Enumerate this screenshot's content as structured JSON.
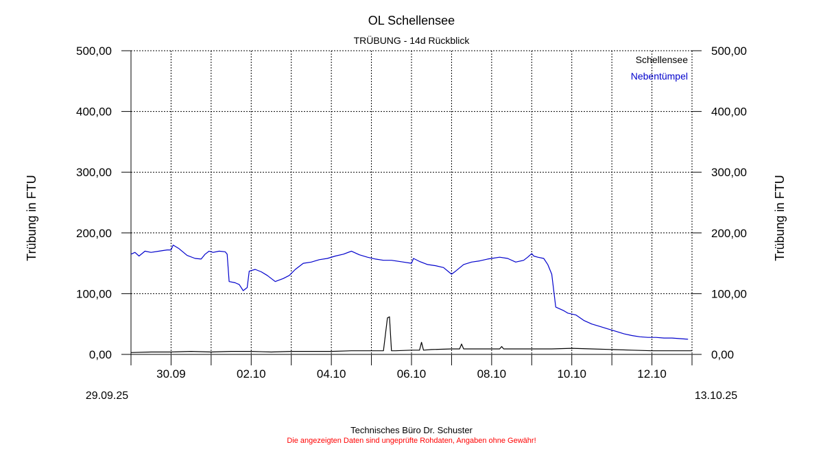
{
  "chart_data": {
    "type": "line",
    "title": "OL Schellensee",
    "subtitle": "TRÜBUNG - 14d Rückblick",
    "ylabel_left": "Trübung in FTU",
    "ylabel_right": "Trübung in FTU",
    "ylim": [
      0,
      500
    ],
    "yticks": [
      0,
      100,
      200,
      300,
      400,
      500
    ],
    "ytick_labels": [
      "0,00",
      "100,00",
      "200,00",
      "300,00",
      "400,00",
      "500,00"
    ],
    "x_start_label": "29.09.25",
    "x_end_label": "13.10.25",
    "xtick_days": [
      1,
      3,
      5,
      7,
      9,
      11,
      13
    ],
    "xtick_labels": [
      "30.09",
      "02.10",
      "04.10",
      "06.10",
      "08.10",
      "10.10",
      "12.10"
    ],
    "grid": true,
    "legend_position": "top-right",
    "series": [
      {
        "name": "Schellensee",
        "color": "#000000",
        "x_days": [
          0.0,
          0.5,
          1.0,
          1.5,
          2.0,
          2.5,
          3.0,
          3.5,
          4.0,
          4.5,
          5.0,
          5.5,
          6.0,
          6.3,
          6.4,
          6.45,
          6.5,
          6.6,
          7.0,
          7.2,
          7.25,
          7.3,
          7.5,
          8.0,
          8.2,
          8.25,
          8.3,
          8.5,
          9.0,
          9.2,
          9.25,
          9.3,
          9.5,
          10.0,
          10.5,
          11.0,
          11.5,
          12.0,
          12.5,
          13.0,
          13.5,
          14.0
        ],
        "values": [
          3,
          4,
          4,
          5,
          4,
          5,
          5,
          4,
          5,
          5,
          5,
          6,
          6,
          6,
          60,
          62,
          6,
          6,
          7,
          7,
          20,
          7,
          8,
          9,
          9,
          17,
          9,
          9,
          9,
          9,
          13,
          9,
          9,
          9,
          9,
          10,
          9,
          8,
          7,
          6,
          6,
          6
        ]
      },
      {
        "name": "Nebentümpel",
        "color": "#0000cc",
        "x_days": [
          0.0,
          0.1,
          0.2,
          0.35,
          0.5,
          0.7,
          0.9,
          1.0,
          1.05,
          1.2,
          1.4,
          1.6,
          1.75,
          1.85,
          1.95,
          2.05,
          2.2,
          2.35,
          2.4,
          2.45,
          2.6,
          2.7,
          2.8,
          2.9,
          2.95,
          3.1,
          3.25,
          3.4,
          3.6,
          3.8,
          3.95,
          4.1,
          4.3,
          4.5,
          4.7,
          4.9,
          5.1,
          5.3,
          5.5,
          5.7,
          5.9,
          6.1,
          6.3,
          6.5,
          6.8,
          7.0,
          7.05,
          7.2,
          7.4,
          7.6,
          7.8,
          8.0,
          8.1,
          8.3,
          8.5,
          8.7,
          8.9,
          9.0,
          9.2,
          9.4,
          9.6,
          9.8,
          9.9,
          10.0,
          10.05,
          10.15,
          10.3,
          10.4,
          10.5,
          10.6,
          10.8,
          10.9,
          11.1,
          11.3,
          11.5,
          11.7,
          11.9,
          12.1,
          12.3,
          12.5,
          12.7,
          12.9,
          13.1,
          13.3,
          13.5,
          13.7,
          13.9
        ],
        "values": [
          165,
          168,
          162,
          170,
          168,
          170,
          172,
          172,
          180,
          174,
          163,
          158,
          157,
          165,
          170,
          168,
          170,
          169,
          165,
          120,
          118,
          115,
          105,
          110,
          137,
          140,
          136,
          130,
          120,
          125,
          130,
          140,
          150,
          152,
          156,
          158,
          162,
          165,
          170,
          164,
          160,
          157,
          155,
          155,
          152,
          150,
          158,
          153,
          148,
          146,
          143,
          132,
          137,
          148,
          152,
          154,
          157,
          158,
          160,
          158,
          152,
          155,
          160,
          166,
          162,
          160,
          158,
          148,
          132,
          78,
          72,
          68,
          65,
          56,
          50,
          46,
          42,
          38,
          34,
          31,
          29,
          28,
          28,
          27,
          27,
          26,
          25
        ]
      }
    ]
  },
  "footer": {
    "company": "Technisches Büro Dr. Schuster",
    "disclaimer": "Die angezeigten Daten sind ungeprüfte Rohdaten, Angaben ohne Gewähr!"
  },
  "colors": {
    "grid": "#000000",
    "disclaimer": "#ff0000"
  }
}
